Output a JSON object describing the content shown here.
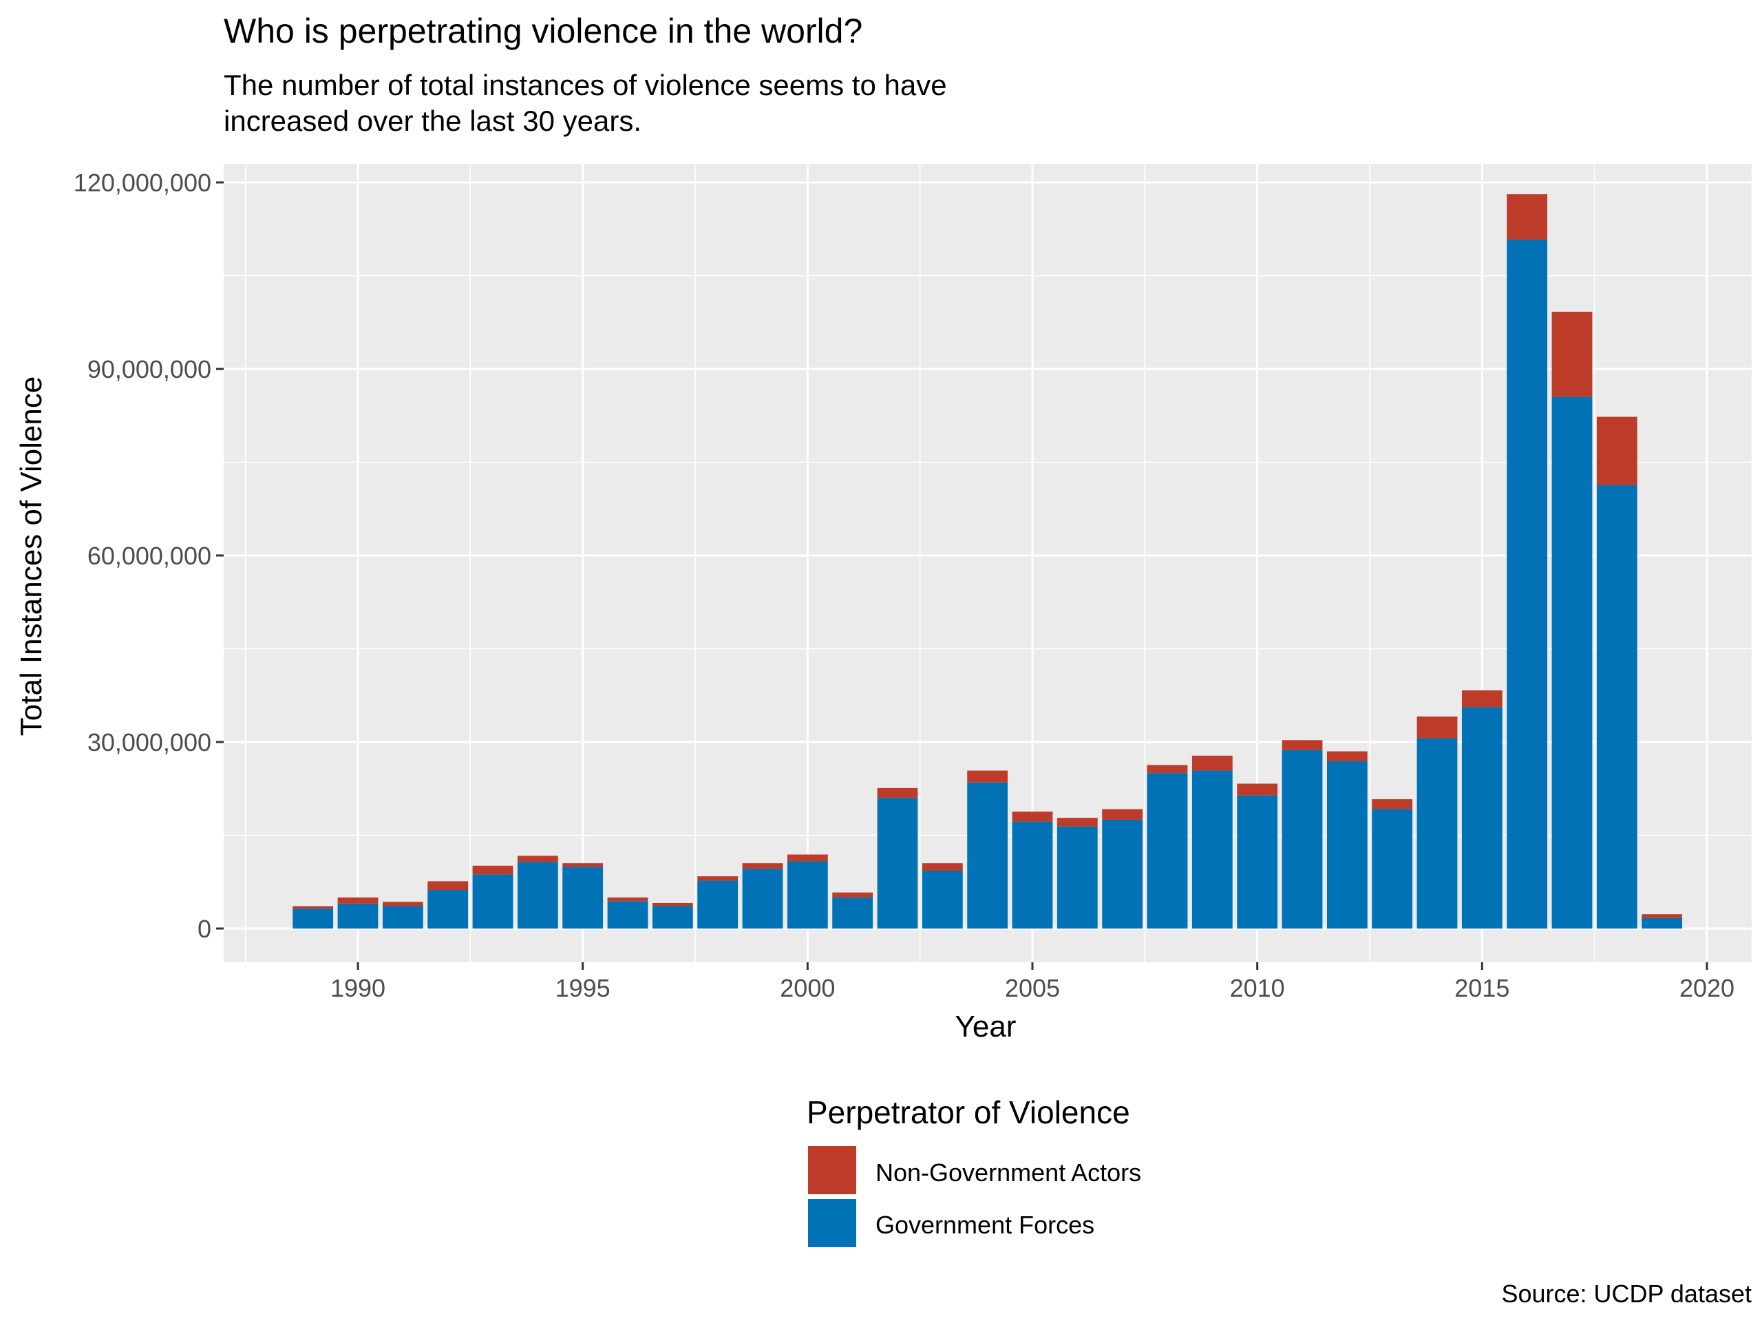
{
  "chart_data": {
    "type": "bar",
    "stacked": true,
    "title": "Who is perpetrating violence in the world?",
    "subtitle": [
      "The number of total instances of violence seems to have",
      "increased over the last 30 years."
    ],
    "xlabel": "Year",
    "ylabel": "Total Instances of Violence",
    "caption": "Source: UCDP dataset",
    "xlim": [
      1987,
      2021
    ],
    "ylim": [
      0,
      120000000
    ],
    "x_ticks": [
      1990,
      1995,
      2000,
      2005,
      2010,
      2015,
      2020
    ],
    "y_ticks": [
      0,
      30000000,
      60000000,
      90000000,
      120000000
    ],
    "y_tick_labels": [
      "0",
      "30,000,000",
      "60,000,000",
      "90,000,000",
      "120,000,000"
    ],
    "x": [
      1989,
      1990,
      1991,
      1992,
      1993,
      1994,
      1995,
      1996,
      1997,
      1998,
      1999,
      2000,
      2001,
      2002,
      2003,
      2004,
      2005,
      2006,
      2007,
      2008,
      2009,
      2010,
      2011,
      2012,
      2013,
      2014,
      2015,
      2016,
      2017,
      2018,
      2019
    ],
    "series": [
      {
        "name": "Government Forces",
        "color": "#0072B5",
        "values": [
          3200000,
          4000000,
          3600000,
          6200000,
          8700000,
          10700000,
          9900000,
          4400000,
          3600000,
          7700000,
          9600000,
          10800000,
          5000000,
          21000000,
          9300000,
          23500000,
          17200000,
          16400000,
          17500000,
          25000000,
          25400000,
          21400000,
          28700000,
          26900000,
          19200000,
          30600000,
          35600000,
          110800000,
          85500000,
          71300000,
          1700000
        ]
      },
      {
        "name": "Non-Government Actors",
        "color": "#BC3C29",
        "values": [
          400000,
          1000000,
          700000,
          1400000,
          1400000,
          1000000,
          600000,
          600000,
          500000,
          700000,
          900000,
          1100000,
          800000,
          1600000,
          1200000,
          1900000,
          1600000,
          1400000,
          1700000,
          1300000,
          2400000,
          1900000,
          1600000,
          1600000,
          1600000,
          3500000,
          2700000,
          7300000,
          13700000,
          11000000,
          600000
        ]
      }
    ],
    "legend": {
      "title": "Perpetrator of Violence",
      "placement": "bottom",
      "entries": [
        {
          "label": "Non-Government Actors",
          "color": "#BC3C29"
        },
        {
          "label": "Government Forces",
          "color": "#0072B5"
        }
      ]
    },
    "panel_color": "#EBEBEB",
    "grid": true
  }
}
